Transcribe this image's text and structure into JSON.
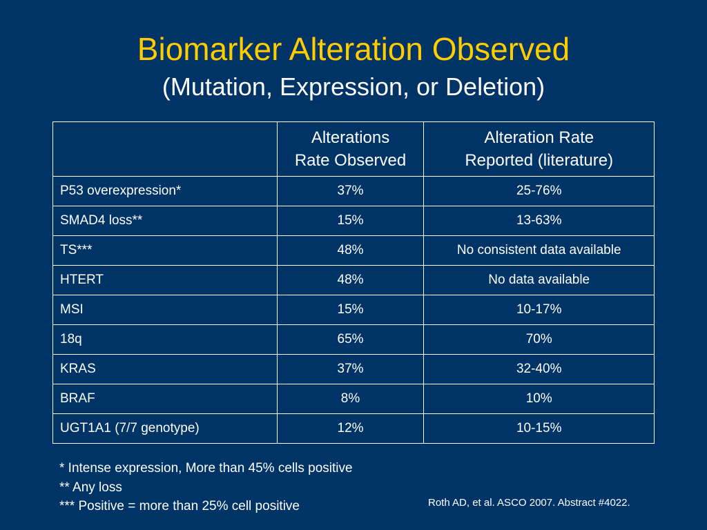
{
  "title": "Biomarker Alteration Observed",
  "subtitle": "(Mutation, Expression, or Deletion)",
  "table": {
    "headers": {
      "col2": [
        "Alterations",
        "Rate Observed"
      ],
      "col3": [
        "Alteration Rate",
        "Reported (literature)"
      ]
    },
    "rows": [
      {
        "name": "P53 overexpression*",
        "observed": "37%",
        "reported": "25-76%"
      },
      {
        "name": "SMAD4 loss**",
        "observed": "15%",
        "reported": "13-63%"
      },
      {
        "name": "TS***",
        "observed": "48%",
        "reported": "No consistent data available"
      },
      {
        "name": "HTERT",
        "observed": "48%",
        "reported": "No data available"
      },
      {
        "name": "MSI",
        "observed": "15%",
        "reported": "10-17%"
      },
      {
        "name": "18q",
        "observed": "65%",
        "reported": "70%"
      },
      {
        "name": "KRAS",
        "observed": "37%",
        "reported": "32-40%"
      },
      {
        "name": "BRAF",
        "observed": "8%",
        "reported": "10%"
      },
      {
        "name": "UGT1A1 (7/7 genotype)",
        "observed": "12%",
        "reported": "10-15%"
      }
    ]
  },
  "footnotes": [
    "* Intense expression, More than 45% cells positive",
    "** Any loss",
    "*** Positive = more than 25% cell positive"
  ],
  "citation": "Roth AD, et al. ASCO 2007. Abstract #4022.",
  "colors": {
    "background": "#003366",
    "title": "#ffcc00",
    "text": "#ffffff"
  }
}
